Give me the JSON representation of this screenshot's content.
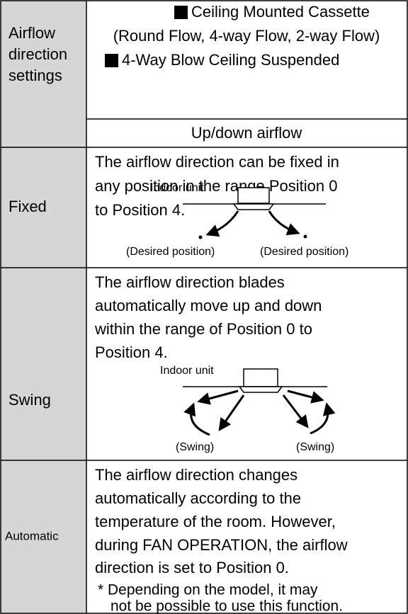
{
  "header": {
    "setting_label": [
      "Airflow",
      "direction",
      "settings"
    ],
    "models": [
      "Ceiling Mounted Cassette",
      "(Round Flow, 4-way Flow, 2-way Flow)",
      "4-Way Blow Ceiling Suspended"
    ],
    "column_heading": "Up/down airflow"
  },
  "rows": [
    {
      "label": "Fixed",
      "description": [
        "The airflow direction can be fixed in",
        "any position in the range Position 0",
        "to Position 4."
      ],
      "diagram": {
        "unit_label": "Indoor unit",
        "labels": [
          "(Desired position)",
          "(Desired position)"
        ]
      }
    },
    {
      "label": "Swing",
      "description": [
        "The airflow direction blades",
        "automatically move up and down",
        "within the range of Position 0 to",
        "Position 4."
      ],
      "diagram": {
        "unit_label": "Indoor unit",
        "labels": [
          "(Swing)",
          "(Swing)"
        ]
      }
    },
    {
      "label": "Automatic",
      "description": [
        "The airflow direction changes",
        "automatically according to the",
        "temperature of the room. However,",
        "during FAN OPERATION, the airflow",
        "direction is set to Position 0."
      ],
      "note": [
        "* Depending on the model, it may",
        "not be possible to use this function."
      ]
    }
  ]
}
